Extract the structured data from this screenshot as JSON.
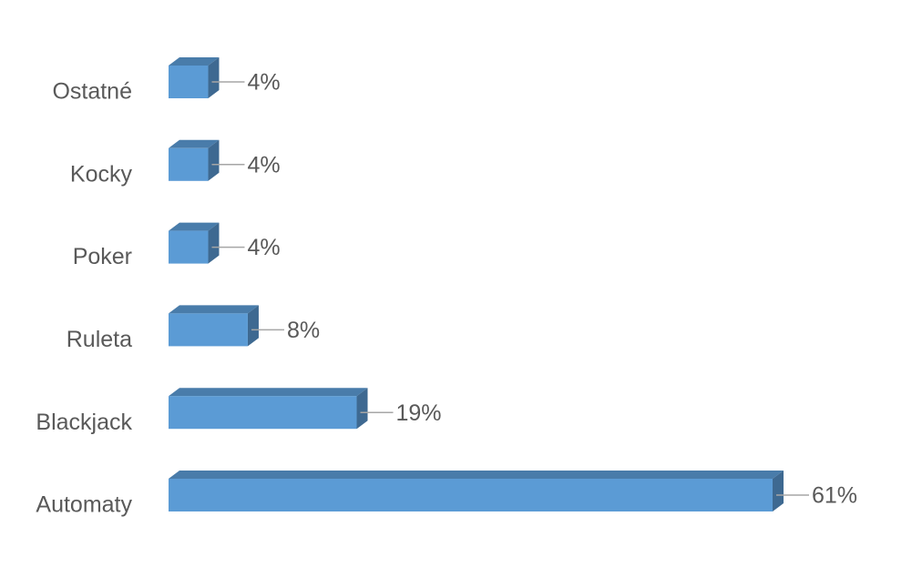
{
  "chart_data": {
    "type": "bar",
    "orientation": "horizontal",
    "three_d": true,
    "categories": [
      "Ostatné",
      "Kocky",
      "Poker",
      "Ruleta",
      "Blackjack",
      "Automaty"
    ],
    "values": [
      4,
      4,
      4,
      8,
      19,
      61
    ],
    "value_labels": [
      "4%",
      "4%",
      "4%",
      "8%",
      "19%",
      "61%"
    ],
    "color": "#5b9bd5"
  }
}
